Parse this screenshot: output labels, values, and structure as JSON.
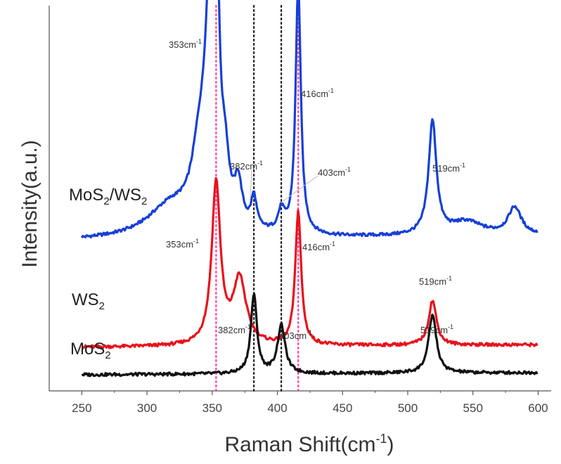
{
  "chart_data": {
    "type": "line",
    "xlabel": "Raman Shift(cm",
    "xlabel_sup": "-1",
    "xlabel_end": ")",
    "ylabel": "Intensity(a.u.)",
    "xlim": [
      225,
      610
    ],
    "xticks": [
      "250",
      "300",
      "350",
      "400",
      "450",
      "500",
      "550",
      "600"
    ],
    "reference_lines": [
      {
        "x": 353,
        "color": "#ff3fa4"
      },
      {
        "x": 382,
        "color": "#222222"
      },
      {
        "x": 403,
        "color": "#222222"
      },
      {
        "x": 416,
        "color": "#ff3fa4"
      }
    ],
    "series": [
      {
        "key": "mos2ws2",
        "label_main": "MoS",
        "label_sub1": "2",
        "label_mid": "/WS",
        "label_sub2": "2",
        "color": "#1640d6",
        "baseline": 0.39,
        "slope": 0.12,
        "peaks": [
          {
            "center": 318,
            "width": 22,
            "height": 0.09
          },
          {
            "center": 340,
            "width": 7,
            "height": 0.18
          },
          {
            "center": 348,
            "width": 4.5,
            "height": 0.55
          },
          {
            "center": 353,
            "width": 2.7,
            "height": 0.72
          },
          {
            "center": 360,
            "width": 3.5,
            "height": 0.14
          },
          {
            "center": 370,
            "width": 3.5,
            "height": 0.12
          },
          {
            "center": 382,
            "width": 2.5,
            "height": 0.09
          },
          {
            "center": 403,
            "width": 3,
            "height": 0.06
          },
          {
            "center": 416,
            "width": 2.4,
            "height": 0.73
          },
          {
            "center": 519,
            "width": 3.6,
            "height": 0.33
          },
          {
            "center": 545,
            "width": 15,
            "height": 0.04
          },
          {
            "center": 582,
            "width": 6,
            "height": 0.08
          }
        ]
      },
      {
        "key": "ws2",
        "label_main": "WS",
        "label_sub1": "2",
        "color": "#e8111b",
        "baseline": 0.08,
        "slope": 0.06,
        "peaks": [
          {
            "center": 353,
            "width": 4,
            "height": 0.47
          },
          {
            "center": 371,
            "width": 6,
            "height": 0.19
          },
          {
            "center": 416,
            "width": 2.7,
            "height": 0.39
          },
          {
            "center": 519,
            "width": 3.6,
            "height": 0.13
          }
        ]
      },
      {
        "key": "mos2",
        "label_main": "MoS",
        "label_sub1": "2",
        "color": "#111111",
        "baseline": 0.0,
        "slope": 0.05,
        "peaks": [
          {
            "center": 382,
            "width": 2.8,
            "height": 0.23
          },
          {
            "center": 403,
            "width": 3.5,
            "height": 0.14
          },
          {
            "center": 519,
            "width": 3.6,
            "height": 0.17
          }
        ]
      }
    ],
    "annotations": [
      {
        "key": "a1",
        "text": "353cm",
        "sup": "-1",
        "series": "mos2ws2",
        "x": 353
      },
      {
        "key": "a2",
        "text": "416cm",
        "sup": "-1",
        "series": "mos2ws2",
        "x": 416
      },
      {
        "key": "a3",
        "text": "382cm",
        "sup": "-1",
        "series": "mos2ws2",
        "x": 382
      },
      {
        "key": "a4",
        "text": "403cm",
        "sup": "-1",
        "series": "mos2ws2",
        "x": 403
      },
      {
        "key": "a5",
        "text": "519cm",
        "sup": "-1",
        "series": "mos2ws2",
        "x": 519
      },
      {
        "key": "a6",
        "text": "353cm",
        "sup": "-1",
        "series": "ws2",
        "x": 353
      },
      {
        "key": "a7",
        "text": "416cm",
        "sup": "-1",
        "series": "ws2",
        "x": 416
      },
      {
        "key": "a8",
        "text": "519cm",
        "sup": "-1",
        "series": "ws2",
        "x": 519
      },
      {
        "key": "a9",
        "text": "382cm",
        "sup": "-1",
        "series": "mos2",
        "x": 382
      },
      {
        "key": "a10",
        "text": "403cm",
        "sup": "-1",
        "series": "mos2",
        "x": 403
      },
      {
        "key": "a11",
        "text": "519cm",
        "sup": "-1",
        "series": "mos2",
        "x": 519
      }
    ],
    "grid": false,
    "legend": "none"
  }
}
